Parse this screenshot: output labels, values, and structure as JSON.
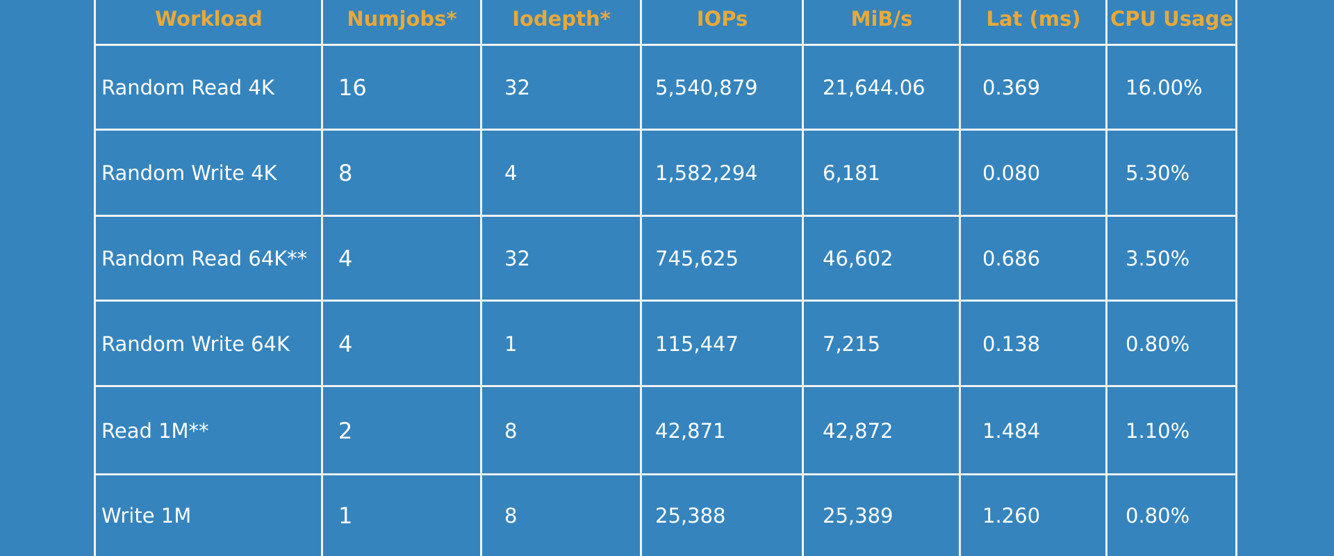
{
  "table": {
    "headers": [
      "Workload",
      "Numjobs*",
      "Iodepth*",
      "IOPs",
      "MiB/s",
      "Lat (ms)",
      "CPU Usage"
    ],
    "rows": [
      [
        "Random Read 4K",
        "16",
        "32",
        "5,540,879",
        "21,644.06",
        "0.369",
        "16.00%"
      ],
      [
        "Random Write 4K",
        "8",
        "4",
        "1,582,294",
        "6,181",
        "0.080",
        "5.30%"
      ],
      [
        "Random Read 64K**",
        "4",
        "32",
        "745,625",
        "46,602",
        "0.686",
        "3.50%"
      ],
      [
        "Random Write 64K",
        "4",
        "1",
        "115,447",
        "7,215",
        "0.138",
        "0.80%"
      ],
      [
        "Read 1M**",
        "2",
        "8",
        "42,871",
        "42,872",
        "1.484",
        "1.10%"
      ],
      [
        "Write 1M",
        "1",
        "8",
        "25,388",
        "25,389",
        "1.260",
        "0.80%"
      ]
    ]
  }
}
